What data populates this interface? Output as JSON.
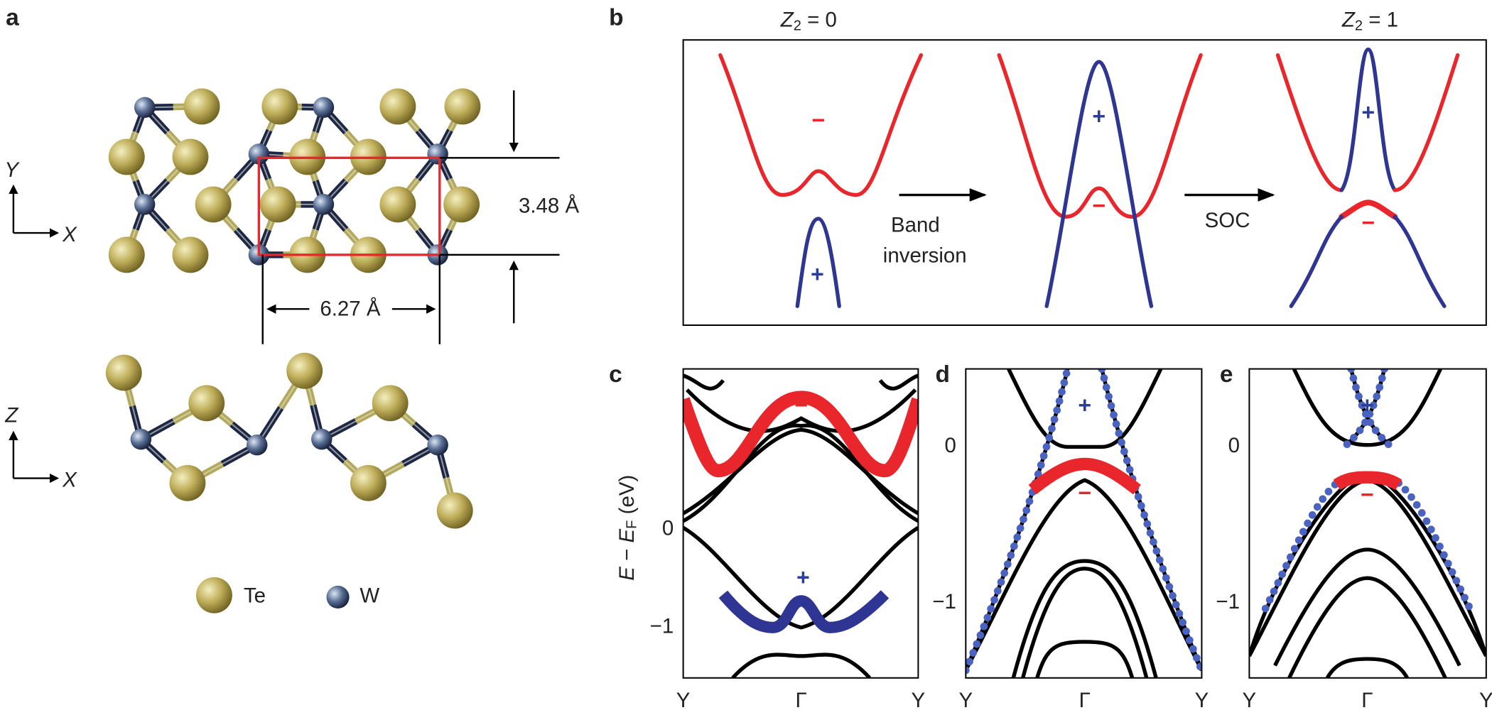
{
  "panel_a": {
    "label": "a",
    "axes_top": {
      "vertical": "Y",
      "horizontal": "X"
    },
    "axes_side": {
      "vertical": "Z",
      "horizontal": "X"
    },
    "dim_y": "3.48 Å",
    "dim_x": "6.27 Å",
    "legend": [
      "Te",
      "W"
    ]
  },
  "panel_b": {
    "label": "b",
    "left_title": {
      "symbol": "Z",
      "subscript": "2",
      "rest": " = 0"
    },
    "right_title": {
      "symbol": "Z",
      "subscript": "2",
      "rest": " = 1"
    },
    "arrow1": [
      "Band",
      "inversion"
    ],
    "arrow2": "SOC",
    "signs": [
      "−",
      "+",
      "+",
      "−",
      "+",
      "−"
    ]
  },
  "panel_c": {
    "label": "c",
    "y_axis_label": [
      "E",
      " − ",
      "E",
      "F",
      " (eV)"
    ],
    "yticks": [
      "0",
      "−1"
    ],
    "xticks": [
      "Y",
      "Γ",
      "Y"
    ],
    "signs": [
      "−",
      "+"
    ]
  },
  "panel_d": {
    "label": "d",
    "yticks": [
      "0",
      "−1"
    ],
    "xticks": [
      "Y",
      "Γ",
      "Y"
    ],
    "signs": [
      "+",
      "−"
    ]
  },
  "panel_e": {
    "label": "e",
    "yticks": [
      "0",
      "−1"
    ],
    "xticks": [
      "Y",
      "Γ",
      "Y"
    ],
    "signs": [
      "+",
      "−"
    ]
  }
}
